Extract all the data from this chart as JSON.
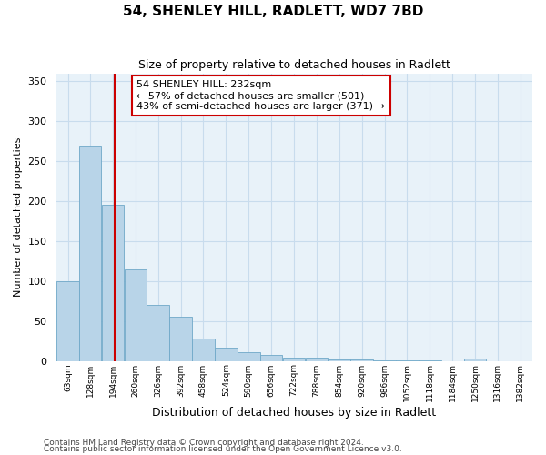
{
  "title": "54, SHENLEY HILL, RADLETT, WD7 7BD",
  "subtitle": "Size of property relative to detached houses in Radlett",
  "xlabel": "Distribution of detached houses by size in Radlett",
  "ylabel": "Number of detached properties",
  "bin_labels": [
    "63sqm",
    "128sqm",
    "194sqm",
    "260sqm",
    "326sqm",
    "392sqm",
    "458sqm",
    "524sqm",
    "590sqm",
    "656sqm",
    "722sqm",
    "788sqm",
    "854sqm",
    "920sqm",
    "986sqm",
    "1052sqm",
    "1118sqm",
    "1184sqm",
    "1250sqm",
    "1316sqm",
    "1382sqm"
  ],
  "bin_left_edges": [
    63,
    128,
    194,
    260,
    326,
    392,
    458,
    524,
    590,
    656,
    722,
    788,
    854,
    920,
    986,
    1052,
    1118,
    1184,
    1250,
    1316,
    1382
  ],
  "bin_width": 66,
  "bar_heights": [
    100,
    270,
    195,
    115,
    70,
    55,
    28,
    17,
    11,
    8,
    4,
    4,
    2,
    2,
    1,
    1,
    1,
    0,
    3,
    0,
    0
  ],
  "bar_color": "#b8d4e8",
  "bar_edge_color": "#6fa8c8",
  "vline_x": 232,
  "vline_color": "#cc0000",
  "annotation_text_line1": "54 SHENLEY HILL: 232sqm",
  "annotation_text_line2": "← 57% of detached houses are smaller (501)",
  "annotation_text_line3": "43% of semi-detached houses are larger (371) →",
  "annotation_box_color": "#ffffff",
  "annotation_box_edge": "#cc0000",
  "ylim": [
    0,
    360
  ],
  "yticks": [
    0,
    50,
    100,
    150,
    200,
    250,
    300,
    350
  ],
  "grid_color": "#c8dced",
  "bg_color": "#e8f2f9",
  "footer1": "Contains HM Land Registry data © Crown copyright and database right 2024.",
  "footer2": "Contains public sector information licensed under the Open Government Licence v3.0.",
  "title_fontsize": 11,
  "subtitle_fontsize": 9,
  "xlabel_fontsize": 9,
  "ylabel_fontsize": 8,
  "footer_fontsize": 6.5
}
